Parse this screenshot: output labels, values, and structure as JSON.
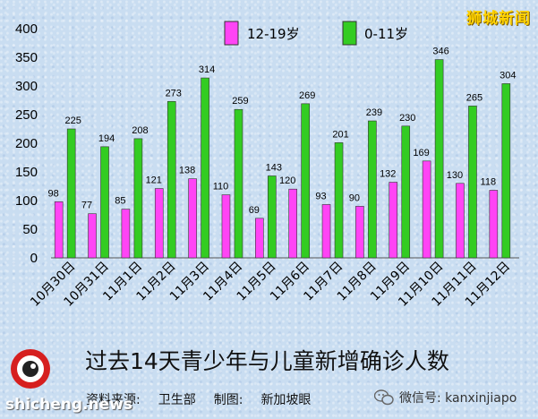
{
  "brand": "狮城新闻",
  "title": "过去14天青少年与儿童新增确诊人数",
  "source": {
    "data_label": "资料来源:",
    "data_value": "卫生部",
    "made_label": "制图:",
    "made_value": "新加坡眼"
  },
  "watermark": {
    "site": "shicheng.news",
    "wechat": "微信号: kanxinjiapo",
    "wechat_icon": "wechat-icon"
  },
  "colors": {
    "series1": "#ff44f5",
    "series2": "#33cc22"
  },
  "chart_data": {
    "type": "bar",
    "categories": [
      "10月30日",
      "10月31日",
      "11月1日",
      "11月2日",
      "11月3日",
      "11月4日",
      "11月5日",
      "11月6日",
      "11月7日",
      "11月8日",
      "11月9日",
      "11月10日",
      "11月11日",
      "11月12日"
    ],
    "series": [
      {
        "name": "12-19岁",
        "values": [
          98,
          77,
          85,
          121,
          138,
          110,
          69,
          120,
          93,
          90,
          132,
          169,
          130,
          118
        ]
      },
      {
        "name": "0-11岁",
        "values": [
          225,
          194,
          208,
          273,
          314,
          259,
          143,
          269,
          201,
          239,
          230,
          346,
          265,
          304
        ]
      }
    ],
    "ylim": [
      0,
      400
    ],
    "yticks": [
      0,
      50,
      100,
      150,
      200,
      250,
      300,
      350,
      400
    ],
    "legend": "top-center",
    "grid": false
  }
}
